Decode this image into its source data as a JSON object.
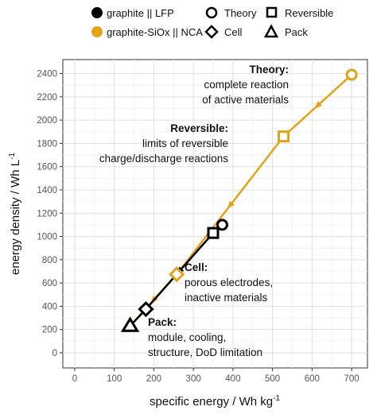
{
  "chart_data": {
    "type": "line",
    "xlabel": "specific energy / Wh kg",
    "xlabel_sup": "-1",
    "ylabel": "energy density / Wh L",
    "ylabel_sup": "-1",
    "xlim": [
      -30,
      740
    ],
    "ylim": [
      -130,
      2520
    ],
    "xticks": [
      0,
      100,
      200,
      300,
      400,
      500,
      600,
      700
    ],
    "yticks": [
      0,
      200,
      400,
      600,
      800,
      1000,
      1200,
      1400,
      1600,
      1800,
      2000,
      2200,
      2400
    ],
    "grid": true,
    "levels": [
      "Pack",
      "Cell",
      "Reversible",
      "Theory"
    ],
    "series": [
      {
        "name": "graphite || LFP",
        "color": "#000000",
        "points": [
          {
            "level": "Pack",
            "x": 140,
            "y": 230
          },
          {
            "level": "Cell",
            "x": 180,
            "y": 375
          },
          {
            "level": "Reversible",
            "x": 350,
            "y": 1030
          },
          {
            "level": "Theory",
            "x": 373,
            "y": 1100
          }
        ]
      },
      {
        "name": "graphite-SiOx || NCA",
        "color": "#E5A217",
        "points": [
          {
            "level": "Pack",
            "x": 140,
            "y": 230
          },
          {
            "level": "Cell",
            "x": 258,
            "y": 675
          },
          {
            "level": "Reversible",
            "x": 528,
            "y": 1860
          },
          {
            "level": "Theory",
            "x": 700,
            "y": 2390
          }
        ]
      }
    ],
    "legend": {
      "placement": "top",
      "series_entries": [
        "graphite || LFP",
        "graphite-SiOx || NCA"
      ],
      "marker_entries": [
        {
          "label": "Theory",
          "shape": "circle"
        },
        {
          "label": "Reversible",
          "shape": "square"
        },
        {
          "label": "Cell",
          "shape": "diamond"
        },
        {
          "label": "Pack",
          "shape": "triangle"
        }
      ]
    },
    "annotations": {
      "theory": {
        "title": "Theory:",
        "lines": [
          "complete reaction",
          "of active materials"
        ]
      },
      "reversible": {
        "title": "Reversible:",
        "lines": [
          "limits of reversible",
          "charge/discharge reactions"
        ]
      },
      "cell": {
        "title": "Cell:",
        "lines": [
          "porous electrodes,",
          "inactive materials"
        ]
      },
      "pack": {
        "title": "Pack:",
        "lines": [
          "module, cooling,",
          "structure, DoD limitation"
        ]
      }
    }
  }
}
